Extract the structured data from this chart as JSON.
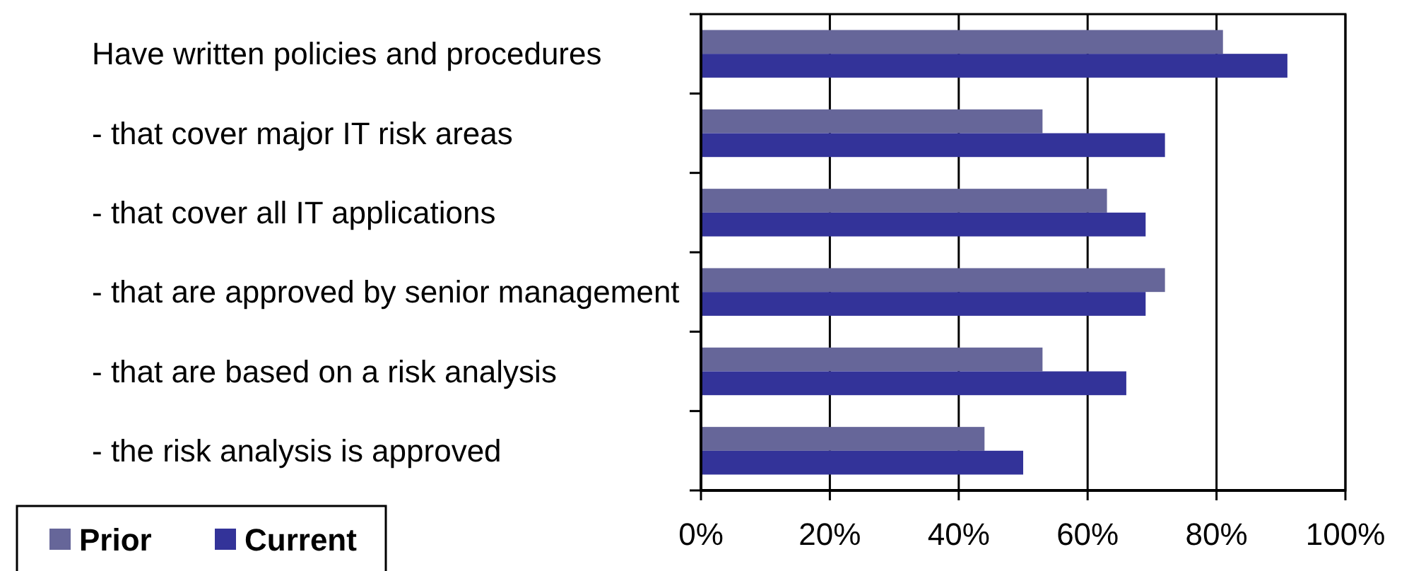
{
  "chart_data": {
    "type": "bar",
    "orientation": "horizontal",
    "categories": [
      "Have written policies and procedures",
      "- that cover major IT risk areas",
      "- that cover all IT applications",
      "- that are approved by senior management",
      "- that are based on a risk analysis",
      "- the risk analysis is approved"
    ],
    "series": [
      {
        "name": "Prior",
        "color": "#666699",
        "values": [
          81,
          53,
          63,
          72,
          53,
          44
        ]
      },
      {
        "name": "Current",
        "color": "#333399",
        "values": [
          91,
          72,
          69,
          69,
          66,
          50
        ]
      }
    ],
    "xlim": [
      0,
      100
    ],
    "xticks": [
      {
        "value": 0,
        "label": "0%"
      },
      {
        "value": 20,
        "label": "20%"
      },
      {
        "value": 40,
        "label": "40%"
      },
      {
        "value": 60,
        "label": "60%"
      },
      {
        "value": 80,
        "label": "80%"
      },
      {
        "value": 100,
        "label": "100%"
      }
    ],
    "grid": "x",
    "legend": "bottom left"
  }
}
